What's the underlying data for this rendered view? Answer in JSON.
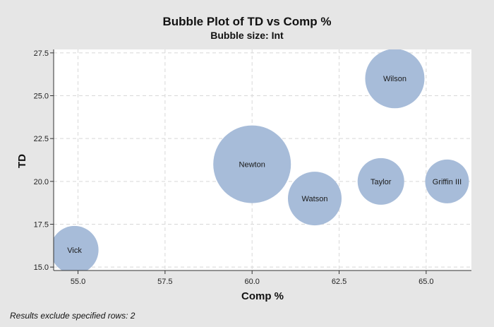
{
  "chart_data": {
    "type": "scatter",
    "title": "Bubble Plot of TD vs Comp %",
    "subtitle": "Bubble size: Int",
    "xlabel": "Comp %",
    "ylabel": "TD",
    "xlim": [
      54.3,
      66.3
    ],
    "ylim": [
      14.8,
      27.7
    ],
    "xticks": [
      "55.0",
      "57.5",
      "60.0",
      "62.5",
      "65.0"
    ],
    "yticks": [
      "15.0",
      "17.5",
      "20.0",
      "22.5",
      "25.0",
      "27.5"
    ],
    "grid": true,
    "points": [
      {
        "label": "Vick",
        "x": 54.9,
        "y": 16.0,
        "size": 34
      },
      {
        "label": "Newton",
        "x": 60.0,
        "y": 21.0,
        "size": 55
      },
      {
        "label": "Watson",
        "x": 61.8,
        "y": 19.0,
        "size": 38
      },
      {
        "label": "Taylor",
        "x": 63.7,
        "y": 20.0,
        "size": 33
      },
      {
        "label": "Griffin III",
        "x": 65.6,
        "y": 20.0,
        "size": 31
      },
      {
        "label": "Wilson",
        "x": 64.1,
        "y": 26.0,
        "size": 42
      }
    ],
    "colors": {
      "bubble": "#a7bcd9",
      "plot_bg": "#ffffff",
      "grid": "#d8d8d8"
    }
  },
  "footnote": "Results exclude specified rows: 2"
}
